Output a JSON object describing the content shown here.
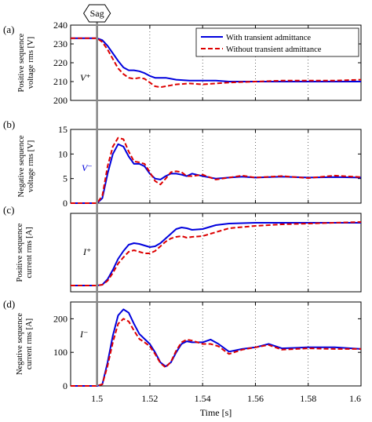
{
  "figure": {
    "sag_marker_label": "Sag",
    "xlabel": "Time [s]"
  },
  "chart_data": [
    {
      "panel": "(a)",
      "type": "line",
      "ylabel": [
        "Positive sequence",
        "voltage rms [V]"
      ],
      "annotation": "V⁺",
      "ylim": [
        200,
        240
      ],
      "yticks": [
        200,
        210,
        220,
        230,
        240
      ],
      "xlim": [
        1.49,
        1.6
      ],
      "xticks": [
        1.5,
        1.52,
        1.54,
        1.56,
        1.58,
        1.6
      ],
      "legend": {
        "position": "top-right",
        "entries": [
          "With transient admittance",
          "Without transient admittance"
        ]
      },
      "series": [
        {
          "name": "With transient admittance",
          "color": "#0000dd",
          "dash": "solid",
          "x": [
            1.49,
            1.5,
            1.502,
            1.504,
            1.506,
            1.508,
            1.51,
            1.512,
            1.514,
            1.516,
            1.518,
            1.52,
            1.522,
            1.524,
            1.526,
            1.528,
            1.53,
            1.535,
            1.54,
            1.545,
            1.55,
            1.56,
            1.57,
            1.58,
            1.59,
            1.6
          ],
          "y": [
            233,
            233,
            232,
            229,
            225,
            221,
            217.5,
            216,
            216,
            215.5,
            214.5,
            213,
            212,
            212,
            212,
            211.5,
            211,
            210.5,
            210.5,
            210.5,
            210,
            210,
            210,
            210,
            210,
            210
          ]
        },
        {
          "name": "Without transient admittance",
          "color": "#dd0000",
          "dash": "dashed",
          "x": [
            1.49,
            1.5,
            1.502,
            1.504,
            1.506,
            1.508,
            1.51,
            1.512,
            1.514,
            1.516,
            1.518,
            1.52,
            1.522,
            1.524,
            1.526,
            1.528,
            1.53,
            1.535,
            1.54,
            1.545,
            1.55,
            1.56,
            1.57,
            1.58,
            1.59,
            1.6
          ],
          "y": [
            233,
            233,
            231,
            227,
            222,
            217,
            214,
            212,
            211.5,
            212,
            211.5,
            209.5,
            207.5,
            207,
            207.5,
            208,
            208.5,
            209,
            208.5,
            209,
            209.5,
            210,
            210.5,
            210.5,
            210.5,
            211
          ]
        }
      ]
    },
    {
      "panel": "(b)",
      "type": "line",
      "ylabel": [
        "Negative sequence",
        "voltage rms [V]"
      ],
      "annotation": "V⁻",
      "ylim": [
        0,
        15
      ],
      "yticks": [
        0,
        5,
        10,
        15
      ],
      "xlim": [
        1.49,
        1.6
      ],
      "xticks": [
        1.5,
        1.52,
        1.54,
        1.56,
        1.58,
        1.6
      ],
      "series": [
        {
          "name": "With transient admittance",
          "color": "#0000dd",
          "dash": "solid",
          "x": [
            1.49,
            1.5,
            1.502,
            1.504,
            1.506,
            1.508,
            1.51,
            1.512,
            1.514,
            1.516,
            1.518,
            1.52,
            1.522,
            1.524,
            1.526,
            1.528,
            1.53,
            1.532,
            1.534,
            1.536,
            1.54,
            1.545,
            1.55,
            1.555,
            1.56,
            1.57,
            1.58,
            1.59,
            1.6
          ],
          "y": [
            0,
            0,
            1,
            6,
            10,
            12,
            11.5,
            9.5,
            8,
            8,
            7.5,
            6,
            5,
            4.8,
            5.5,
            6,
            6,
            5.8,
            5.5,
            6,
            5.5,
            5,
            5.2,
            5.4,
            5.2,
            5.4,
            5.2,
            5.3,
            5.2
          ]
        },
        {
          "name": "Without transient admittance",
          "color": "#dd0000",
          "dash": "dashed",
          "x": [
            1.49,
            1.5,
            1.502,
            1.504,
            1.506,
            1.508,
            1.51,
            1.512,
            1.514,
            1.516,
            1.518,
            1.52,
            1.522,
            1.524,
            1.526,
            1.528,
            1.53,
            1.532,
            1.534,
            1.536,
            1.54,
            1.545,
            1.55,
            1.555,
            1.56,
            1.57,
            1.58,
            1.59,
            1.6
          ],
          "y": [
            0,
            0,
            1.5,
            7.5,
            11.5,
            13.3,
            13,
            10.5,
            8.5,
            8.3,
            8,
            6.3,
            4.5,
            3.8,
            5,
            6.3,
            6.5,
            6.3,
            5.5,
            5.5,
            5.8,
            4.8,
            5.2,
            5.6,
            5.2,
            5.5,
            5.1,
            5.6,
            5.3
          ]
        }
      ]
    },
    {
      "panel": "(c)",
      "type": "line",
      "ylabel": [
        "Positive sequence",
        "current rms [A]"
      ],
      "annotation": "I⁺",
      "ylim": [
        0,
        50
      ],
      "yticks": [],
      "xlim": [
        1.49,
        1.6
      ],
      "xticks": [
        1.5,
        1.52,
        1.54,
        1.56,
        1.58,
        1.6
      ],
      "series": [
        {
          "name": "With transient admittance",
          "color": "#0000dd",
          "dash": "solid",
          "x": [
            1.49,
            1.5,
            1.502,
            1.504,
            1.506,
            1.508,
            1.51,
            1.512,
            1.514,
            1.516,
            1.518,
            1.52,
            1.522,
            1.524,
            1.526,
            1.528,
            1.53,
            1.532,
            1.534,
            1.536,
            1.54,
            1.545,
            1.55,
            1.56,
            1.57,
            1.58,
            1.59,
            1.6
          ],
          "y": [
            4,
            4,
            4.5,
            8,
            14,
            21,
            26,
            30,
            31,
            30.5,
            29.5,
            28.5,
            29,
            31,
            34,
            37,
            40,
            41,
            40.5,
            39.5,
            40,
            42.5,
            43.5,
            44,
            44,
            44,
            44,
            44
          ]
        },
        {
          "name": "Without transient admittance",
          "color": "#dd0000",
          "dash": "dashed",
          "x": [
            1.49,
            1.5,
            1.502,
            1.504,
            1.506,
            1.508,
            1.51,
            1.512,
            1.514,
            1.516,
            1.518,
            1.52,
            1.522,
            1.524,
            1.526,
            1.528,
            1.53,
            1.532,
            1.534,
            1.536,
            1.54,
            1.545,
            1.55,
            1.56,
            1.57,
            1.58,
            1.59,
            1.6
          ],
          "y": [
            4,
            4,
            4.5,
            7,
            12,
            18,
            22,
            25.5,
            26.5,
            25.5,
            24.5,
            24.5,
            26,
            29,
            32,
            34,
            35,
            35.5,
            34.5,
            35,
            35.5,
            38,
            40.5,
            42,
            43,
            43.5,
            44,
            44.5
          ]
        }
      ]
    },
    {
      "panel": "(d)",
      "type": "line",
      "ylabel": [
        "Negative sequence",
        "current rms [A]"
      ],
      "annotation": "I⁻",
      "ylim": [
        0,
        250
      ],
      "yticks": [
        0,
        100,
        200
      ],
      "xlim": [
        1.49,
        1.6
      ],
      "xticks": [
        1.5,
        1.52,
        1.54,
        1.56,
        1.58,
        1.6
      ],
      "series": [
        {
          "name": "With transient admittance",
          "color": "#0000dd",
          "dash": "solid",
          "x": [
            1.49,
            1.5,
            1.502,
            1.504,
            1.506,
            1.508,
            1.51,
            1.512,
            1.514,
            1.516,
            1.518,
            1.52,
            1.522,
            1.524,
            1.526,
            1.528,
            1.53,
            1.532,
            1.534,
            1.536,
            1.54,
            1.543,
            1.546,
            1.55,
            1.555,
            1.56,
            1.565,
            1.57,
            1.58,
            1.59,
            1.6
          ],
          "y": [
            0,
            0,
            5,
            70,
            150,
            210,
            228,
            218,
            185,
            155,
            140,
            125,
            100,
            70,
            58,
            70,
            100,
            125,
            133,
            130,
            130,
            138,
            125,
            102,
            110,
            115,
            125,
            112,
            115,
            115,
            110
          ]
        },
        {
          "name": "Without transient admittance",
          "color": "#dd0000",
          "dash": "dashed",
          "x": [
            1.49,
            1.5,
            1.502,
            1.504,
            1.506,
            1.508,
            1.51,
            1.512,
            1.514,
            1.516,
            1.518,
            1.52,
            1.522,
            1.524,
            1.526,
            1.528,
            1.53,
            1.532,
            1.534,
            1.536,
            1.54,
            1.543,
            1.546,
            1.55,
            1.555,
            1.56,
            1.565,
            1.57,
            1.58,
            1.59,
            1.6
          ],
          "y": [
            0,
            0,
            5,
            60,
            130,
            185,
            200,
            192,
            165,
            140,
            130,
            118,
            95,
            68,
            55,
            72,
            105,
            130,
            138,
            135,
            125,
            125,
            118,
            95,
            108,
            115,
            122,
            108,
            112,
            110,
            110
          ]
        }
      ]
    }
  ]
}
